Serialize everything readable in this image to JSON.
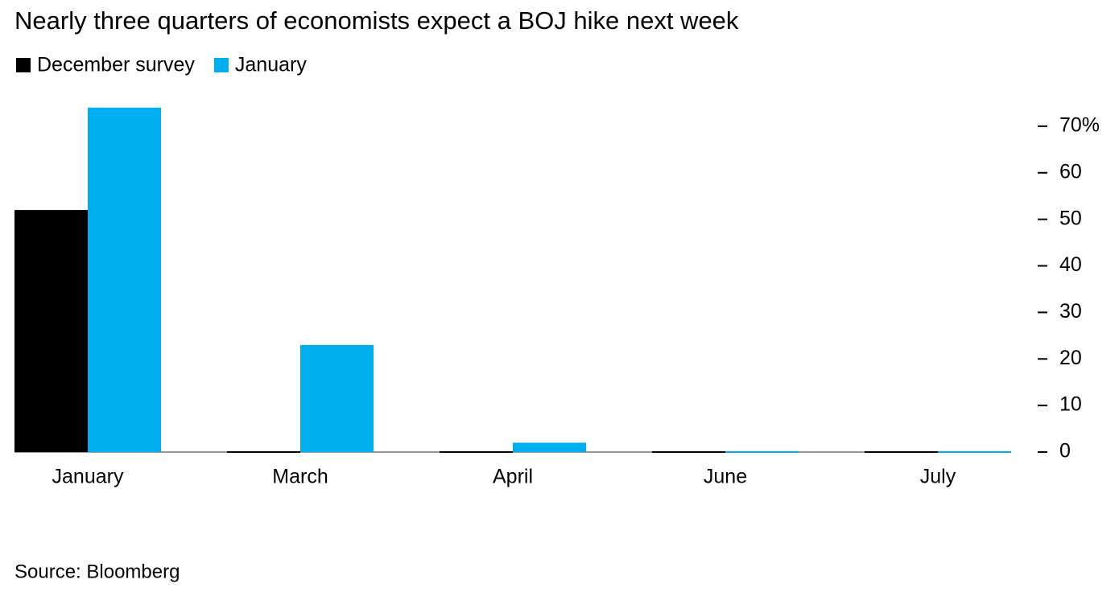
{
  "chart_data": {
    "type": "bar",
    "title": "Nearly three quarters of economists expect a BOJ hike next week",
    "source": "Source: Bloomberg",
    "categories": [
      "January",
      "March",
      "April",
      "June",
      "July"
    ],
    "series": [
      {
        "name": "December survey",
        "color": "#000000",
        "values": [
          52,
          0,
          0,
          0,
          0
        ]
      },
      {
        "name": "January",
        "color": "#00adef",
        "values": [
          74,
          23,
          2,
          0,
          0
        ]
      }
    ],
    "ylim": [
      0,
      75
    ],
    "yticks": [
      0,
      10,
      20,
      30,
      40,
      50,
      60,
      {
        "value": 70,
        "label": "70%"
      }
    ]
  }
}
